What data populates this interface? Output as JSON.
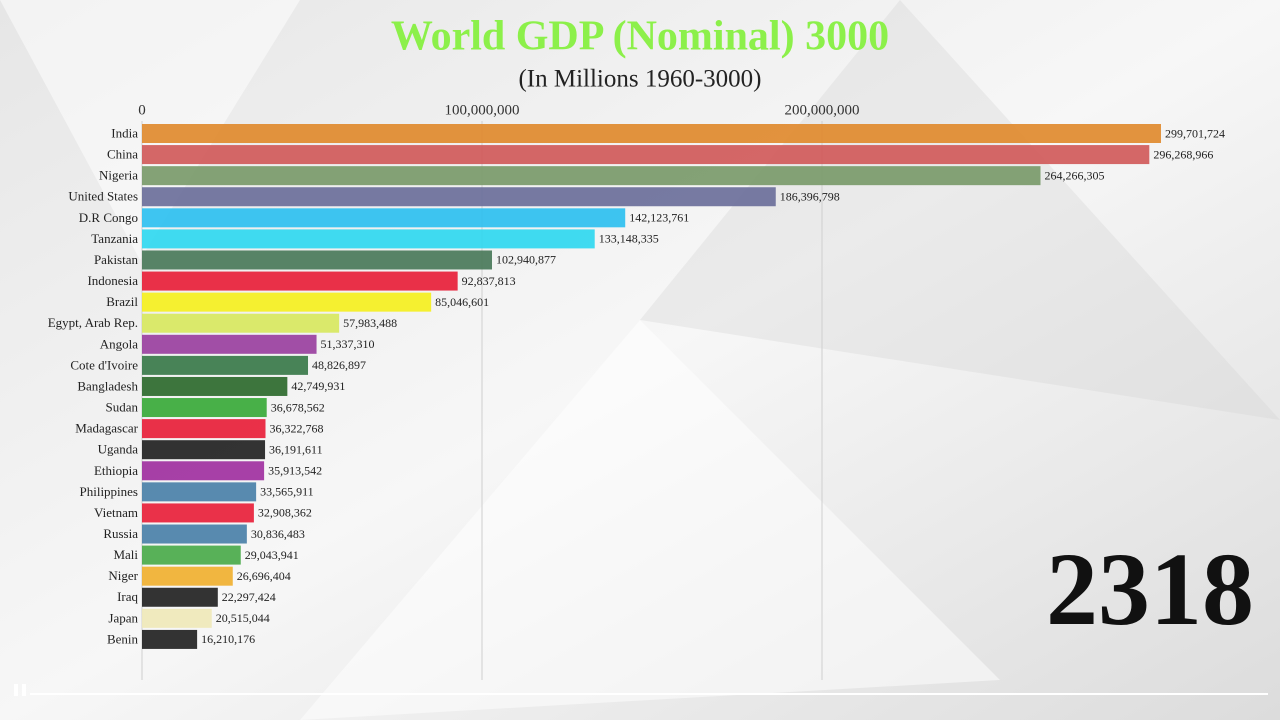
{
  "chart_data": {
    "type": "hbar",
    "title": "World GDP (Nominal) 3000",
    "subtitle": "(In Millions 1960-3000)",
    "year_label": "2318",
    "categories": [
      "India",
      "China",
      "Nigeria",
      "United States",
      "D.R Congo",
      "Tanzania",
      "Pakistan",
      "Indonesia",
      "Brazil",
      "Egypt, Arab Rep.",
      "Angola",
      "Cote d'Ivoire",
      "Bangladesh",
      "Sudan",
      "Madagascar",
      "Uganda",
      "Ethiopia",
      "Philippines",
      "Vietnam",
      "Russia",
      "Mali",
      "Niger",
      "Iraq",
      "Japan",
      "Benin"
    ],
    "values": [
      299701724,
      296268966,
      264266305,
      186396798,
      142123761,
      133148335,
      102940877,
      92837813,
      85046601,
      57983488,
      51337310,
      48826897,
      42749931,
      36678562,
      36322768,
      36191611,
      35913542,
      33565911,
      32908362,
      30836483,
      29043941,
      26696404,
      22297424,
      20515044,
      16210176
    ],
    "value_labels": [
      "299,701,724",
      "296,268,966",
      "264,266,305",
      "186,396,798",
      "142,123,761",
      "133,148,335",
      "102,940,877",
      "92,837,813",
      "85,046,601",
      "57,983,488",
      "51,337,310",
      "48,826,897",
      "42,749,931",
      "36,678,562",
      "36,322,768",
      "36,191,611",
      "35,913,542",
      "33,565,911",
      "32,908,362",
      "30,836,483",
      "29,043,941",
      "26,696,404",
      "22,297,424",
      "20,515,044",
      "16,210,176"
    ],
    "colors": [
      "#e08a2e",
      "#d05a5a",
      "#7a9a6a",
      "#6b6f9a",
      "#2ec0f0",
      "#30d8f0",
      "#4a7a5a",
      "#e8203a",
      "#f5f020",
      "#d8e860",
      "#9a40a0",
      "#3a7a4a",
      "#2e6a2e",
      "#3aaa3a",
      "#e8203a",
      "#222222",
      "#a030a0",
      "#4a80a8",
      "#e8203a",
      "#4a80a8",
      "#4aaa4a",
      "#f0b030",
      "#222222",
      "#efe8b8",
      "#222222"
    ],
    "xlim": [
      0,
      330000000
    ],
    "xticks": [
      0,
      {
        "value": 100000000,
        "label": "100,000,000"
      },
      {
        "value": 200000000,
        "label": "200,000,000"
      }
    ],
    "grid": true
  }
}
